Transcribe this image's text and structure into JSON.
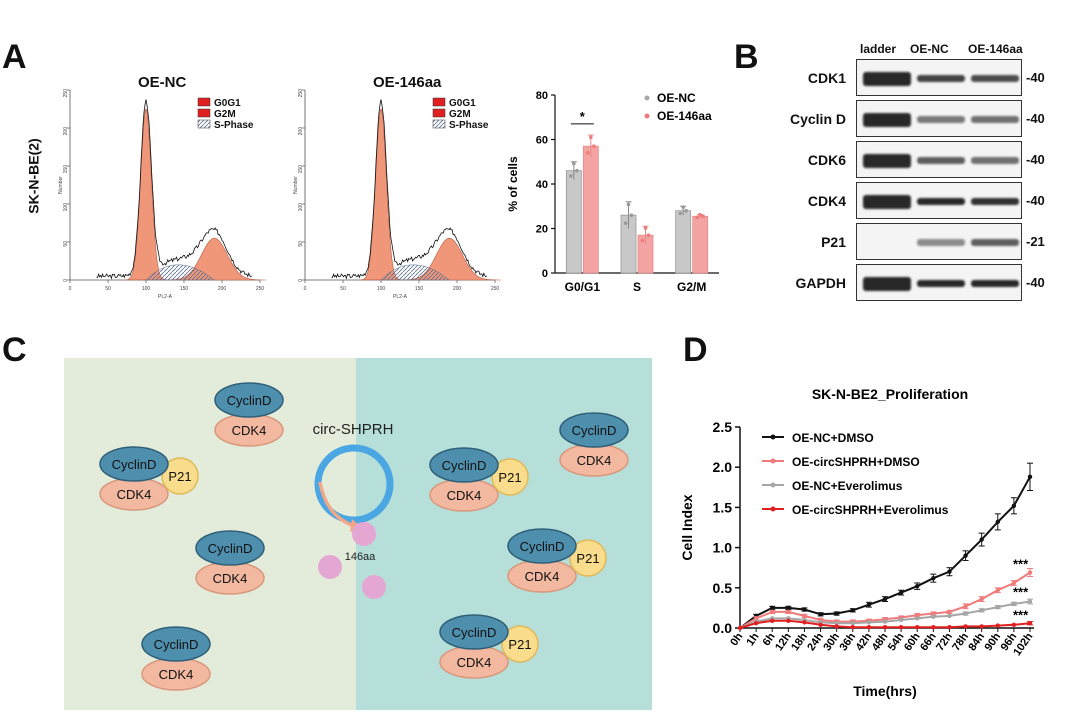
{
  "panels": {
    "a": "A",
    "b": "B",
    "c": "C",
    "d": "D"
  },
  "panel_a": {
    "row_label": "SK-N-BE(2)",
    "hist1_title": "OE-NC",
    "hist2_title": "OE-146aa",
    "hist_legend": [
      "G0G1",
      "G2M",
      "S-Phase"
    ],
    "hist_xlabel": "PL2-A",
    "hist_ylabel": "Number",
    "hist_xticks": [
      "0",
      "50",
      "100",
      "150",
      "200",
      "250"
    ],
    "hist_yticks": [
      "0",
      "50",
      "100",
      "150",
      "200",
      "250"
    ]
  },
  "panel_b": {
    "columns": [
      "ladder",
      "OE-NC",
      "OE-146aa"
    ],
    "rows": [
      {
        "name": "CDK1",
        "size": "-40"
      },
      {
        "name": "Cyclin D",
        "size": "-40"
      },
      {
        "name": "CDK6",
        "size": "-40"
      },
      {
        "name": "CDK4",
        "size": "-40"
      },
      {
        "name": "P21",
        "size": "-21"
      },
      {
        "name": "GAPDH",
        "size": "-40"
      }
    ]
  },
  "panel_c": {
    "circ_label": "circ-SHPRH",
    "peptide_label": "146aa",
    "cyclin": "CyclinD",
    "cdk4": "CDK4",
    "p21": "P21"
  },
  "chart_data": [
    {
      "type": "bar",
      "ylabel": "% of cells",
      "ylim": [
        0,
        80
      ],
      "yticks": [
        "0",
        "20",
        "40",
        "60",
        "80"
      ],
      "categories": [
        "G0/G1",
        "S",
        "G2/M"
      ],
      "series": [
        {
          "name": "OE-NC",
          "values": [
            46,
            26,
            28
          ],
          "errors": [
            4,
            6,
            2
          ],
          "color": "#c8c8c8"
        },
        {
          "name": "OE-146aa",
          "values": [
            57,
            17,
            25.5
          ],
          "errors": [
            5,
            4,
            0.8
          ],
          "color": "#f4a3a3"
        }
      ],
      "significance": [
        {
          "category": "G0/G1",
          "label": "*"
        }
      ]
    },
    {
      "type": "line",
      "title": "SK-N-BE2_Proliferation",
      "xlabel": "Time(hrs)",
      "ylabel": "Cell Index",
      "ylim": [
        0,
        2.5
      ],
      "yticks": [
        "0.0",
        "0.5",
        "1.0",
        "1.5",
        "2.0",
        "2.5"
      ],
      "x": [
        "0h",
        "1h",
        "6h",
        "12h",
        "18h",
        "24h",
        "30h",
        "36h",
        "42h",
        "48h",
        "54h",
        "60h",
        "66h",
        "72h",
        "78h",
        "84h",
        "90h",
        "96h",
        "102h"
      ],
      "series": [
        {
          "name": "OE-NC+DMSO",
          "color": "#111111",
          "values": [
            0.0,
            0.15,
            0.25,
            0.25,
            0.23,
            0.17,
            0.18,
            0.22,
            0.29,
            0.36,
            0.44,
            0.52,
            0.62,
            0.7,
            0.9,
            1.1,
            1.32,
            1.52,
            1.88
          ],
          "errors": [
            0.01,
            0.02,
            0.02,
            0.02,
            0.02,
            0.02,
            0.02,
            0.02,
            0.03,
            0.03,
            0.03,
            0.04,
            0.05,
            0.05,
            0.06,
            0.08,
            0.1,
            0.1,
            0.17
          ]
        },
        {
          "name": "OE-circSHPRH+DMSO",
          "color": "#ef7b7b",
          "values": [
            0.0,
            0.12,
            0.2,
            0.2,
            0.15,
            0.1,
            0.08,
            0.08,
            0.09,
            0.11,
            0.13,
            0.16,
            0.18,
            0.2,
            0.27,
            0.36,
            0.47,
            0.56,
            0.69
          ],
          "errors": [
            0.01,
            0.02,
            0.02,
            0.02,
            0.02,
            0.02,
            0.02,
            0.02,
            0.02,
            0.02,
            0.02,
            0.02,
            0.02,
            0.02,
            0.03,
            0.03,
            0.03,
            0.03,
            0.05
          ]
        },
        {
          "name": "OE-NC+Everolimus",
          "color": "#a6a6a6",
          "values": [
            0.0,
            0.08,
            0.12,
            0.12,
            0.1,
            0.07,
            0.06,
            0.06,
            0.07,
            0.08,
            0.1,
            0.12,
            0.14,
            0.15,
            0.18,
            0.22,
            0.26,
            0.3,
            0.33
          ],
          "errors": [
            0.01,
            0.01,
            0.01,
            0.01,
            0.01,
            0.01,
            0.01,
            0.01,
            0.01,
            0.01,
            0.01,
            0.01,
            0.01,
            0.01,
            0.02,
            0.02,
            0.02,
            0.02,
            0.03
          ]
        },
        {
          "name": "OE-circSHPRH+Everolimus",
          "color": "#e02020",
          "values": [
            0.0,
            0.06,
            0.09,
            0.09,
            0.07,
            0.04,
            0.02,
            0.01,
            0.01,
            0.01,
            0.01,
            0.01,
            0.01,
            0.01,
            0.02,
            0.02,
            0.03,
            0.04,
            0.06
          ],
          "errors": [
            0.01,
            0.01,
            0.01,
            0.01,
            0.01,
            0.01,
            0.01,
            0.01,
            0.01,
            0.01,
            0.01,
            0.01,
            0.01,
            0.01,
            0.01,
            0.01,
            0.01,
            0.01,
            0.02
          ]
        }
      ],
      "annotations": [
        "***",
        "***",
        "***"
      ]
    }
  ],
  "colors": {
    "green_bg": "#e3ecdb",
    "teal_bg": "#b5dfd8",
    "cyclin": "#4f8fae",
    "cdk4": "#f2b8a0",
    "p21": "#f9dc8c",
    "circ": "#4aa7e3",
    "peptide": "#e4a7d3",
    "hist_fill": "#f0977a"
  }
}
